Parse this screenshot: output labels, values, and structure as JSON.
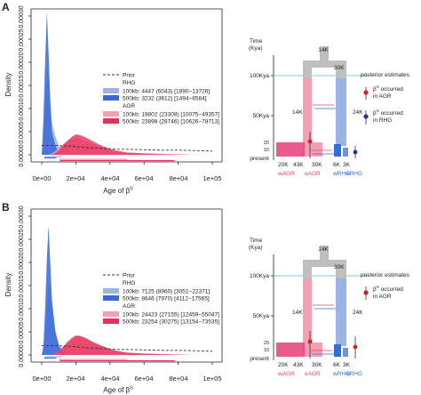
{
  "panels": [
    {
      "letter": "A",
      "ylabel": "Density",
      "yticks": [
        "0.00000",
        "0.00005",
        "0.00010",
        "0.00015",
        "0.00020",
        "0.00025",
        "0.00030"
      ],
      "xticks": [
        "0e+00",
        "2e+04",
        "4e+04",
        "6e+04",
        "8e+04",
        "1e+05"
      ],
      "xlabel": "Age of β",
      "xlabel_sup": "S",
      "legend": {
        "prior": "Prior",
        "group1_title": "RHG",
        "group1_rows": [
          "100kb: 4447 (6043) [1890−13726]",
          "500kb: 3232 (3612) [1494−8584]"
        ],
        "group2_title": "AGR",
        "group2_rows": [
          "100kb: 19802 (23308) [10075−49357]",
          "500kb: 23898 (28746) [10626−78713]"
        ]
      },
      "diagram": {
        "time_label": "Time",
        "time_unit": "(Kya)",
        "k100": "100Kya",
        "k50": "50Kya",
        "t20": "20",
        "t10": "10",
        "present": "present",
        "node14k_top": "14K",
        "node30k": "30K",
        "node14k": "14K",
        "node24k": "24K",
        "pops": [
          "20K",
          "43K",
          "30K",
          "6K",
          "3K"
        ],
        "groups": [
          "wAGR",
          "eAGR",
          "wRHG",
          "eRHG"
        ],
        "posterior_title": "posterior estimates",
        "dot1": "β",
        "dot1_sup": "S",
        "dot1_rest": " occurred",
        "dot1_line2": "in AGR",
        "dot2": "β",
        "dot2_sup": "S",
        "dot2_rest": " occurred",
        "dot2_line2": "in RHG"
      }
    },
    {
      "letter": "B",
      "ylabel": "Density",
      "yticks": [
        "0.00000",
        "0.00005",
        "0.00010",
        "0.00015",
        "0.00020",
        "0.00025",
        "0.00030"
      ],
      "xticks": [
        "0e+00",
        "2e+04",
        "4e+04",
        "6e+04",
        "8e+04",
        "1e+05"
      ],
      "xlabel": "Age of β",
      "xlabel_sup": "S",
      "legend": {
        "prior": "Prior",
        "group1_title": "RHG",
        "group1_rows": [
          "100kb: 7125 (8960) [3051−22371]",
          "500kb: 8646 (7970) [4112−17565]"
        ],
        "group2_title": "AGR",
        "group2_rows": [
          "100kb: 24423 (27155) [12459−55047]",
          "500kb: 23254 (30275) [13154−73535]"
        ]
      },
      "diagram": {
        "time_label": "Time",
        "time_unit": "(Kya)",
        "k100": "100Kya",
        "k50": "50Kya",
        "t20": "20",
        "t10": "10",
        "present": "present",
        "node14k_top": "14K",
        "node30k": "30K",
        "node14k": "14K",
        "node24k": "24K",
        "pops": [
          "20K",
          "43K",
          "30K",
          "6K",
          "3K"
        ],
        "groups": [
          "wAGR",
          "eAGR",
          "wRHG",
          "eRHG"
        ],
        "posterior_title": "posterior estimates",
        "dot1": "β",
        "dot1_sup": "S",
        "dot1_rest": " occurred",
        "dot1_line2": "in AGR",
        "dot2": "",
        "dot2_sup": "",
        "dot2_rest": "",
        "dot2_line2": ""
      }
    }
  ],
  "colors": {
    "rhg100": "#9ab4e8",
    "rhg500": "#3a68d8",
    "agr100": "#f4a0b4",
    "agr500": "#e8305c",
    "prior": "#333333",
    "pink": "#e8407a",
    "blue": "#2f6fd8",
    "gray": "#bfbfbf",
    "dotRed": "#d62020",
    "dotBlue": "#1a3a9a",
    "cyan": "#5ab8e0"
  },
  "chart_data": [
    {
      "type": "area",
      "xlabel": "Age of β^S",
      "ylabel": "Density",
      "xlim": [
        0,
        100000
      ],
      "ylim": [
        0,
        0.0003
      ],
      "x": [
        0,
        1000,
        2000,
        3000,
        4000,
        5000,
        6000,
        8000,
        10000,
        12000,
        15000,
        18000,
        20000,
        22000,
        25000,
        28000,
        30000,
        35000,
        40000,
        45000,
        50000,
        60000,
        70000,
        80000,
        90000,
        100000
      ],
      "series": [
        {
          "name": "Prior",
          "values": [
            2e-05,
            2e-05,
            2e-05,
            2e-05,
            2e-05,
            2e-05,
            2e-05,
            2e-05,
            2e-05,
            1.9e-05,
            1.9e-05,
            1.8e-05,
            1.8e-05,
            1.7e-05,
            1.6e-05,
            1.5e-05,
            1.5e-05,
            1.4e-05,
            1.3e-05,
            1.2e-05,
            1.2e-05,
            1.1e-05,
            1e-05,
            1e-05,
            9e-06,
            8e-06
          ]
        },
        {
          "name": "RHG 100kb",
          "values": [
            0,
            3e-05,
            0.0001,
            0.00019,
            0.00016,
            0.00011,
            7e-05,
            4e-05,
            2e-05,
            1e-05,
            4e-06,
            2e-06,
            1e-06,
            0,
            0,
            0,
            0,
            0,
            0,
            0,
            0,
            0,
            0,
            0,
            0,
            0
          ]
        },
        {
          "name": "RHG 500kb",
          "values": [
            0,
            8e-05,
            0.0002,
            0.00031,
            0.00022,
            0.00012,
            5e-05,
            2e-05,
            5e-06,
            1e-06,
            0,
            0,
            0,
            0,
            0,
            0,
            0,
            0,
            0,
            0,
            0,
            0,
            0,
            0,
            0,
            0
          ]
        },
        {
          "name": "AGR 100kb",
          "values": [
            0,
            0,
            0,
            0,
            0,
            1e-06,
            3e-06,
            8e-06,
            1.5e-05,
            2.2e-05,
            3e-05,
            3.5e-05,
            3.6e-05,
            3.5e-05,
            3.1e-05,
            2.6e-05,
            2.3e-05,
            1.6e-05,
            1e-05,
            6e-06,
            4e-06,
            2e-06,
            1e-06,
            0,
            0,
            0
          ]
        },
        {
          "name": "AGR 500kb",
          "values": [
            0,
            0,
            0,
            0,
            0,
            0,
            1e-06,
            4e-06,
            1e-05,
            1.9e-05,
            3e-05,
            4e-05,
            4.4e-05,
            4.3e-05,
            3.9e-05,
            3.3e-05,
            2.9e-05,
            2e-05,
            1.3e-05,
            8e-06,
            5e-06,
            3e-06,
            2e-06,
            1e-06,
            0,
            0
          ]
        }
      ]
    },
    {
      "type": "area",
      "xlabel": "Age of β^S",
      "ylabel": "Density",
      "xlim": [
        0,
        100000
      ],
      "ylim": [
        0,
        0.0003
      ],
      "x": [
        0,
        1000,
        2000,
        3000,
        4000,
        5000,
        6000,
        8000,
        10000,
        12000,
        15000,
        18000,
        20000,
        22000,
        25000,
        28000,
        30000,
        35000,
        40000,
        45000,
        50000,
        60000,
        70000,
        80000,
        90000,
        100000
      ],
      "series": [
        {
          "name": "Prior",
          "values": [
            2e-05,
            2e-05,
            2e-05,
            2e-05,
            2e-05,
            2e-05,
            2e-05,
            2e-05,
            2e-05,
            1.9e-05,
            1.9e-05,
            1.8e-05,
            1.8e-05,
            1.7e-05,
            1.6e-05,
            1.5e-05,
            1.5e-05,
            1.4e-05,
            1.3e-05,
            1.2e-05,
            1.2e-05,
            1.1e-05,
            1e-05,
            1e-05,
            9e-06,
            8e-06
          ]
        },
        {
          "name": "RHG 100kb",
          "values": [
            0,
            1e-05,
            4e-05,
            0.0001,
            0.00015,
            0.00014,
            0.0001,
            5e-05,
            2.5e-05,
            1.2e-05,
            5e-06,
            2e-06,
            1e-06,
            0,
            0,
            0,
            0,
            0,
            0,
            0,
            0,
            0,
            0,
            0,
            0,
            0
          ]
        },
        {
          "name": "RHG 500kb",
          "values": [
            0,
            2e-05,
            0.0001,
            0.00021,
            0.00028,
            0.0002,
            0.00012,
            5e-05,
            2e-05,
            7e-06,
            2e-06,
            0,
            0,
            0,
            0,
            0,
            0,
            0,
            0,
            0,
            0,
            0,
            0,
            0,
            0,
            0
          ]
        },
        {
          "name": "AGR 100kb",
          "values": [
            0,
            0,
            0,
            0,
            0,
            0,
            1e-06,
            3e-06,
            8e-06,
            1.5e-05,
            2.6e-05,
            3.5e-05,
            4e-05,
            4.1e-05,
            3.8e-05,
            3.2e-05,
            2.8e-05,
            2e-05,
            1.3e-05,
            8e-06,
            5e-06,
            2e-06,
            1e-06,
            0,
            0,
            0
          ]
        },
        {
          "name": "AGR 500kb",
          "values": [
            0,
            0,
            0,
            0,
            0,
            0,
            1e-06,
            3e-06,
            8e-06,
            1.6e-05,
            2.8e-05,
            3.8e-05,
            4.2e-05,
            4.2e-05,
            3.8e-05,
            3.2e-05,
            2.8e-05,
            2e-05,
            1.3e-05,
            8e-06,
            5e-06,
            3e-06,
            2e-06,
            1e-06,
            0,
            0
          ]
        }
      ]
    }
  ]
}
